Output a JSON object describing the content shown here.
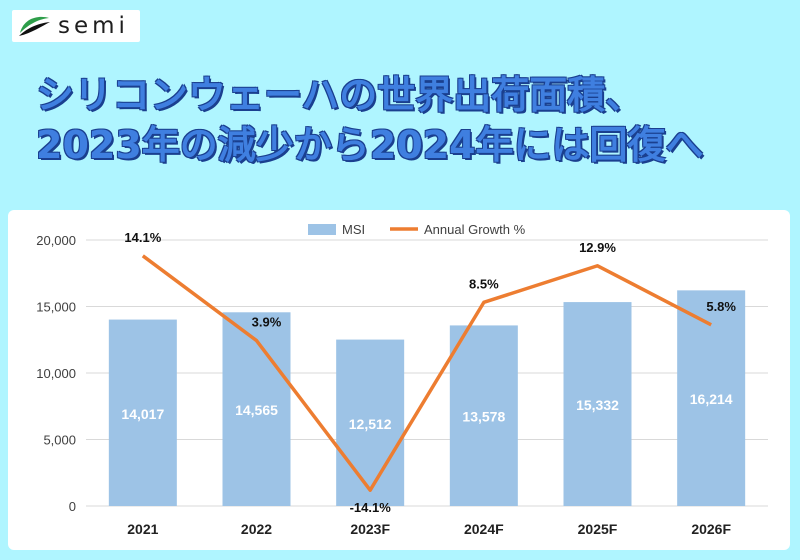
{
  "brand": {
    "logo_text": "semi"
  },
  "headline": {
    "line1": "シリコンウェーハの世界出荷面積、",
    "line2": "2023年の減少から2024年には回復へ"
  },
  "chart_data": {
    "type": "bar",
    "categories": [
      "2021",
      "2022",
      "2023F",
      "2024F",
      "2025F",
      "2026F"
    ],
    "series": [
      {
        "name": "MSI",
        "type": "bar",
        "values": [
          14017,
          14565,
          12512,
          13578,
          15332,
          16214
        ],
        "labels": [
          "14,017",
          "14,565",
          "12,512",
          "13,578",
          "15,332",
          "16,214"
        ],
        "color": "#9dc3e6"
      },
      {
        "name": "Annual Growth %",
        "type": "line",
        "values": [
          14.1,
          3.9,
          -14.1,
          8.5,
          12.9,
          5.8
        ],
        "labels": [
          "14.1%",
          "3.9%",
          "-14.1%",
          "8.5%",
          "12.9%",
          "5.8%"
        ],
        "color": "#ed7d31"
      }
    ],
    "yaxis_ticks": [
      "0",
      "5,000",
      "10,000",
      "15,000",
      "20,000"
    ],
    "ylim": [
      0,
      20000
    ],
    "secondary_ylim": [
      -16,
      16
    ],
    "legend_position": "top-center",
    "grid": true
  }
}
